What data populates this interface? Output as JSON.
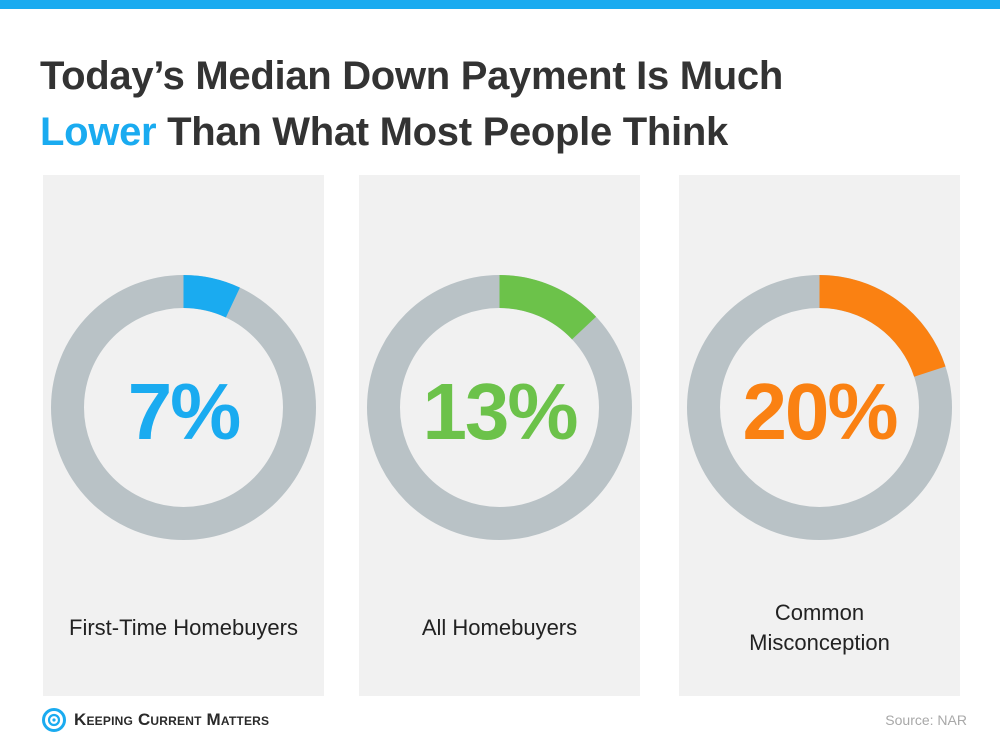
{
  "title": {
    "line1": "Today’s Median Down Payment Is Much",
    "highlight": "Lower",
    "rest": " Than What Most People Think"
  },
  "colors": {
    "brand_blue": "#1aabf0",
    "green": "#6cc24a",
    "orange": "#fa8112",
    "track_gray": "#b9c2c6",
    "panel_bg": "#f1f1f1",
    "title_text": "#333333"
  },
  "chart_data": {
    "type": "pie",
    "subtype": "donut",
    "unit": "%",
    "series": [
      {
        "name": "First-Time Homebuyers",
        "value": 7,
        "label": "7%",
        "color": "#1aabf0"
      },
      {
        "name": "All Homebuyers",
        "value": 13,
        "label": "13%",
        "color": "#6cc24a"
      },
      {
        "name": "Common\nMisconception",
        "value": 20,
        "label": "20%",
        "color": "#fa8112"
      }
    ]
  },
  "footer": {
    "logo_text": "Keeping Current Matters",
    "logo_icon": "kcm-logo-icon",
    "source": "Source: NAR"
  }
}
